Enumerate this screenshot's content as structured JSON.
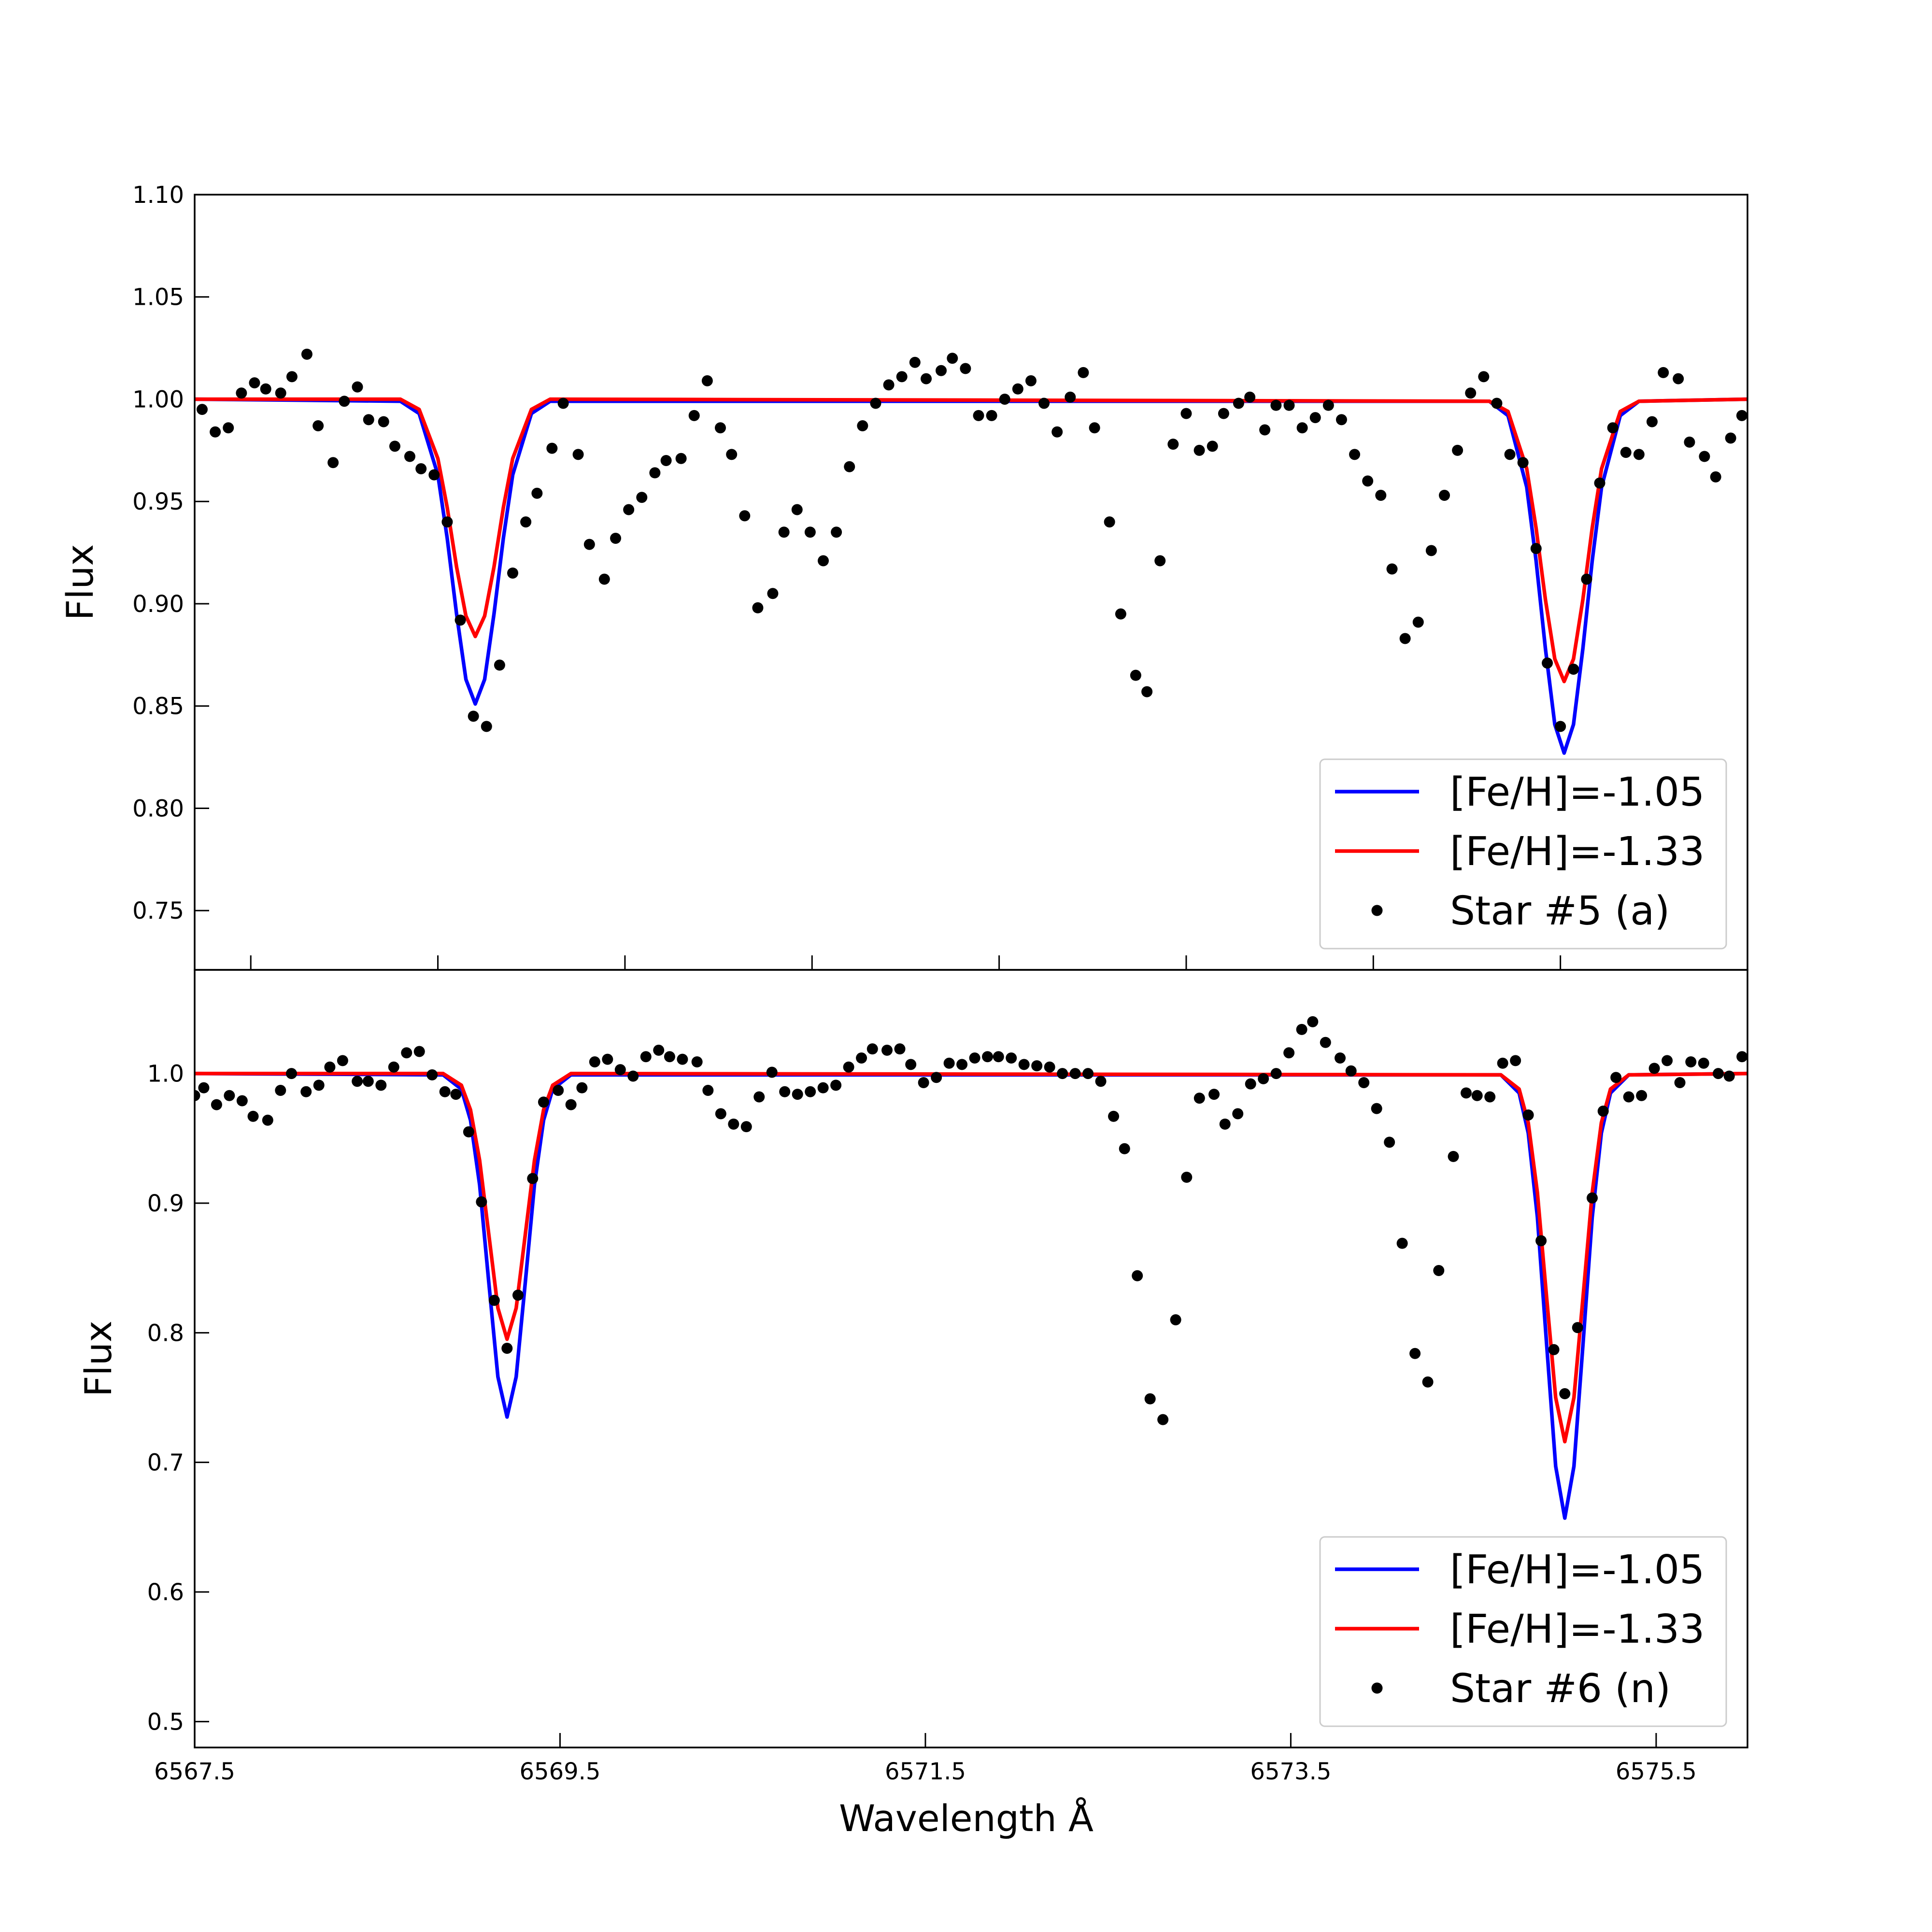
{
  "chart_data": [
    {
      "type": "line",
      "y_label": "Flux",
      "legend": "lower right",
      "xtick_labels": false,
      "xlim": [
        6567.7,
        6576
      ],
      "ylim": [
        0.721,
        1.1
      ],
      "xticks": [
        6568,
        6569,
        6570,
        6571,
        6572,
        6573,
        6574,
        6575
      ],
      "yticks": [
        0.75,
        {
          "value": 0.8,
          "label": "0.80"
        },
        0.85,
        {
          "value": 0.9,
          "label": "0.90"
        },
        0.95,
        {
          "value": 1,
          "label": "1.00"
        },
        1.05,
        {
          "value": 1.1,
          "label": "1.10"
        }
      ],
      "series": [
        {
          "name": "[Fe/H]=-1.05",
          "type": "line",
          "color": "#0000ff",
          "x": [
            6567.7,
            6568.8,
            6568.9,
            6569.0,
            6569.05,
            6569.1,
            6569.15,
            6569.2,
            6569.25,
            6569.3,
            6569.35,
            6569.4,
            6569.5,
            6569.6,
            6574.62,
            6574.72,
            6574.82,
            6574.87,
            6574.92,
            6574.97,
            6575.02,
            6575.07,
            6575.12,
            6575.17,
            6575.22,
            6575.32,
            6575.42,
            6576
          ],
          "values": [
            1,
            0.999,
            0.993,
            0.963,
            0.932,
            0.895,
            0.863,
            0.851,
            0.863,
            0.895,
            0.932,
            0.963,
            0.993,
            0.999,
            0.999,
            0.992,
            0.957,
            0.921,
            0.878,
            0.841,
            0.827,
            0.841,
            0.878,
            0.921,
            0.957,
            0.992,
            0.999,
            1
          ]
        },
        {
          "name": "[Fe/H]=-1.33",
          "type": "line",
          "color": "#ff0000",
          "x": [
            6567.7,
            6568.8,
            6568.9,
            6569.0,
            6569.05,
            6569.1,
            6569.15,
            6569.2,
            6569.25,
            6569.3,
            6569.35,
            6569.4,
            6569.5,
            6569.6,
            6574.62,
            6574.72,
            6574.82,
            6574.87,
            6574.92,
            6574.97,
            6575.02,
            6575.07,
            6575.12,
            6575.17,
            6575.22,
            6575.32,
            6575.42,
            6576
          ],
          "values": [
            1,
            1,
            0.995,
            0.971,
            0.947,
            0.918,
            0.894,
            0.884,
            0.894,
            0.918,
            0.947,
            0.971,
            0.995,
            1,
            0.999,
            0.994,
            0.966,
            0.937,
            0.902,
            0.873,
            0.862,
            0.873,
            0.902,
            0.937,
            0.966,
            0.994,
            0.999,
            1
          ]
        },
        {
          "name": "Star #5 (a)",
          "type": "scatter",
          "color": "#000000",
          "x": [
            6567.74,
            6567.81,
            6567.88,
            6567.95,
            6568.02,
            6568.08,
            6568.16,
            6568.22,
            6568.3,
            6568.36,
            6568.44,
            6568.5,
            6568.57,
            6568.63,
            6568.71,
            6568.77,
            6568.85,
            6568.91,
            6568.98,
            6569.05,
            6569.12,
            6569.19,
            6569.26,
            6569.33,
            6569.4,
            6569.47,
            6569.53,
            6569.61,
            6569.67,
            6569.75,
            6569.81,
            6569.89,
            6569.95,
            6570.02,
            6570.09,
            6570.16,
            6570.22,
            6570.3,
            6570.37,
            6570.44,
            6570.51,
            6570.57,
            6570.64,
            6570.71,
            6570.79,
            6570.85,
            6570.92,
            6570.99,
            6571.06,
            6571.13,
            6571.2,
            6571.27,
            6571.34,
            6571.41,
            6571.48,
            6571.55,
            6571.61,
            6571.69,
            6571.75,
            6571.82,
            6571.89,
            6571.96,
            6572.03,
            6572.1,
            6572.17,
            6572.24,
            6572.31,
            6572.38,
            6572.45,
            6572.51,
            6572.59,
            6572.65,
            6572.73,
            6572.79,
            6572.86,
            6572.93,
            6573.0,
            6573.07,
            6573.14,
            6573.2,
            6573.28,
            6573.34,
            6573.42,
            6573.48,
            6573.55,
            6573.62,
            6573.69,
            6573.76,
            6573.83,
            6573.9,
            6573.97,
            6574.04,
            6574.1,
            6574.17,
            6574.24,
            6574.31,
            6574.38,
            6574.45,
            6574.52,
            6574.59,
            6574.66,
            6574.73,
            6574.8,
            6574.87,
            6574.93,
            6575.0,
            6575.07,
            6575.14,
            6575.21,
            6575.28,
            6575.35,
            6575.42,
            6575.49,
            6575.55,
            6575.63,
            6575.69,
            6575.77,
            6575.83,
            6575.91,
            6575.97
          ],
          "values": [
            0.995,
            0.984,
            0.986,
            1.003,
            1.008,
            1.005,
            1.003,
            1.011,
            1.022,
            0.987,
            0.969,
            0.999,
            1.006,
            0.99,
            0.989,
            0.977,
            0.972,
            0.966,
            0.963,
            0.94,
            0.892,
            0.845,
            0.84,
            0.87,
            0.915,
            0.94,
            0.954,
            0.976,
            0.998,
            0.973,
            0.929,
            0.912,
            0.932,
            0.946,
            0.952,
            0.964,
            0.97,
            0.971,
            0.992,
            1.009,
            0.986,
            0.973,
            0.943,
            0.898,
            0.905,
            0.935,
            0.946,
            0.935,
            0.921,
            0.935,
            0.967,
            0.987,
            0.998,
            1.007,
            1.011,
            1.018,
            1.01,
            1.014,
            1.02,
            1.015,
            0.992,
            0.992,
            1.0,
            1.005,
            1.009,
            0.998,
            0.984,
            1.001,
            1.013,
            0.986,
            0.94,
            0.895,
            0.865,
            0.857,
            0.921,
            0.978,
            0.993,
            0.975,
            0.977,
            0.993,
            0.998,
            1.001,
            0.985,
            0.997,
            0.997,
            0.986,
            0.991,
            0.997,
            0.99,
            0.973,
            0.96,
            0.953,
            0.917,
            0.883,
            0.891,
            0.926,
            0.953,
            0.975,
            1.003,
            1.011,
            0.998,
            0.973,
            0.969,
            0.927,
            0.871,
            0.84,
            0.868,
            0.912,
            0.959,
            0.986,
            0.974,
            0.973,
            0.989,
            1.013,
            1.01,
            0.979,
            0.972,
            0.962,
            0.981,
            0.992
          ]
        }
      ]
    },
    {
      "type": "line",
      "y_label": "Flux",
      "x_label": "Wavelength  Å",
      "legend": "lower right",
      "xtick_labels": true,
      "xlim": [
        6567.5,
        6576
      ],
      "ylim": [
        0.48,
        1.08
      ],
      "xticks": [
        6567.5,
        6569.5,
        6571.5,
        6573.5,
        6575.5
      ],
      "yticks": [
        0.5,
        0.6,
        0.7,
        0.8,
        0.9,
        {
          "value": 1,
          "label": "1.0"
        }
      ],
      "series": [
        {
          "name": "[Fe/H]=-1.05",
          "type": "line",
          "color": "#0000ff",
          "x": [
            6567.5,
            6568.86,
            6568.96,
            6569.01,
            6569.06,
            6569.11,
            6569.16,
            6569.21,
            6569.26,
            6569.31,
            6569.36,
            6569.41,
            6569.46,
            6569.56,
            6574.65,
            6574.75,
            6574.8,
            6574.85,
            6574.9,
            6574.95,
            6575.0,
            6575.05,
            6575.1,
            6575.15,
            6575.2,
            6575.25,
            6575.35,
            6576
          ],
          "values": [
            1,
            0.999,
            0.988,
            0.964,
            0.914,
            0.839,
            0.766,
            0.735,
            0.766,
            0.839,
            0.914,
            0.964,
            0.988,
            0.999,
            0.999,
            0.985,
            0.954,
            0.889,
            0.792,
            0.697,
            0.657,
            0.697,
            0.792,
            0.889,
            0.954,
            0.985,
            0.999,
            1
          ]
        },
        {
          "name": "[Fe/H]=-1.33",
          "type": "line",
          "color": "#ff0000",
          "x": [
            6567.5,
            6568.86,
            6568.96,
            6569.01,
            6569.06,
            6569.11,
            6569.16,
            6569.21,
            6569.26,
            6569.31,
            6569.36,
            6569.41,
            6569.46,
            6569.56,
            6574.65,
            6574.75,
            6574.8,
            6574.85,
            6574.9,
            6574.95,
            6575.0,
            6575.05,
            6575.1,
            6575.15,
            6575.2,
            6575.25,
            6575.35,
            6576
          ],
          "values": [
            1,
            1,
            0.991,
            0.972,
            0.933,
            0.876,
            0.819,
            0.795,
            0.819,
            0.876,
            0.933,
            0.972,
            0.991,
            1,
            0.999,
            0.988,
            0.962,
            0.908,
            0.828,
            0.75,
            0.716,
            0.75,
            0.828,
            0.908,
            0.962,
            0.988,
            0.999,
            1
          ]
        },
        {
          "name": "Star #6 (n)",
          "type": "scatter",
          "color": "#000000",
          "x": [
            6567.5,
            6567.55,
            6567.62,
            6567.69,
            6567.76,
            6567.82,
            6567.9,
            6567.97,
            6568.03,
            6568.11,
            6568.18,
            6568.24,
            6568.31,
            6568.39,
            6568.45,
            6568.52,
            6568.59,
            6568.66,
            6568.73,
            6568.8,
            6568.87,
            6568.93,
            6569.0,
            6569.07,
            6569.14,
            6569.21,
            6569.27,
            6569.35,
            6569.41,
            6569.49,
            6569.56,
            6569.62,
            6569.69,
            6569.76,
            6569.83,
            6569.9,
            6569.97,
            6570.04,
            6570.1,
            6570.17,
            6570.25,
            6570.31,
            6570.38,
            6570.45,
            6570.52,
            6570.59,
            6570.66,
            6570.73,
            6570.8,
            6570.87,
            6570.94,
            6571.01,
            6571.08,
            6571.15,
            6571.21,
            6571.29,
            6571.36,
            6571.42,
            6571.49,
            6571.56,
            6571.63,
            6571.7,
            6571.77,
            6571.84,
            6571.9,
            6571.97,
            6572.04,
            6572.11,
            6572.18,
            6572.25,
            6572.32,
            6572.39,
            6572.46,
            6572.53,
            6572.59,
            6572.66,
            6572.73,
            6572.8,
            6572.87,
            6572.93,
            6573.0,
            6573.08,
            6573.14,
            6573.21,
            6573.28,
            6573.35,
            6573.42,
            6573.49,
            6573.56,
            6573.62,
            6573.69,
            6573.77,
            6573.83,
            6573.9,
            6573.97,
            6574.04,
            6574.11,
            6574.18,
            6574.25,
            6574.31,
            6574.39,
            6574.46,
            6574.52,
            6574.59,
            6574.66,
            6574.73,
            6574.8,
            6574.87,
            6574.94,
            6575.0,
            6575.07,
            6575.15,
            6575.21,
            6575.28,
            6575.35,
            6575.42,
            6575.49,
            6575.56,
            6575.63,
            6575.69,
            6575.76,
            6575.84,
            6575.9,
            6575.97
          ],
          "values": [
            0.983,
            0.989,
            0.976,
            0.983,
            0.979,
            0.967,
            0.964,
            0.987,
            1.0,
            0.986,
            0.991,
            1.005,
            1.01,
            0.994,
            0.994,
            0.991,
            1.005,
            1.016,
            1.017,
            0.999,
            0.986,
            0.984,
            0.955,
            0.901,
            0.825,
            0.788,
            0.829,
            0.919,
            0.978,
            0.987,
            0.976,
            0.989,
            1.009,
            1.011,
            1.003,
            0.998,
            1.013,
            1.018,
            1.013,
            1.011,
            1.009,
            0.987,
            0.969,
            0.961,
            0.959,
            0.982,
            1.001,
            0.986,
            0.984,
            0.986,
            0.989,
            0.991,
            1.005,
            1.012,
            1.019,
            1.018,
            1.019,
            1.007,
            0.993,
            0.997,
            1.008,
            1.007,
            1.012,
            1.013,
            1.013,
            1.012,
            1.007,
            1.006,
            1.005,
            1.0,
            1.0,
            1.0,
            0.994,
            0.967,
            0.942,
            0.844,
            0.749,
            0.733,
            0.81,
            0.92,
            0.981,
            0.984,
            0.961,
            0.969,
            0.992,
            0.996,
            1.0,
            1.016,
            1.034,
            1.04,
            1.024,
            1.012,
            1.002,
            0.993,
            0.973,
            0.947,
            0.869,
            0.784,
            0.762,
            0.848,
            0.936,
            0.985,
            0.983,
            0.982,
            1.008,
            1.01,
            0.968,
            0.871,
            0.787,
            0.753,
            0.804,
            0.904,
            0.971,
            0.997,
            0.982,
            0.983,
            1.004,
            1.01,
            0.993,
            1.009,
            1.008,
            1.0,
            0.998,
            1.013
          ]
        }
      ]
    }
  ]
}
